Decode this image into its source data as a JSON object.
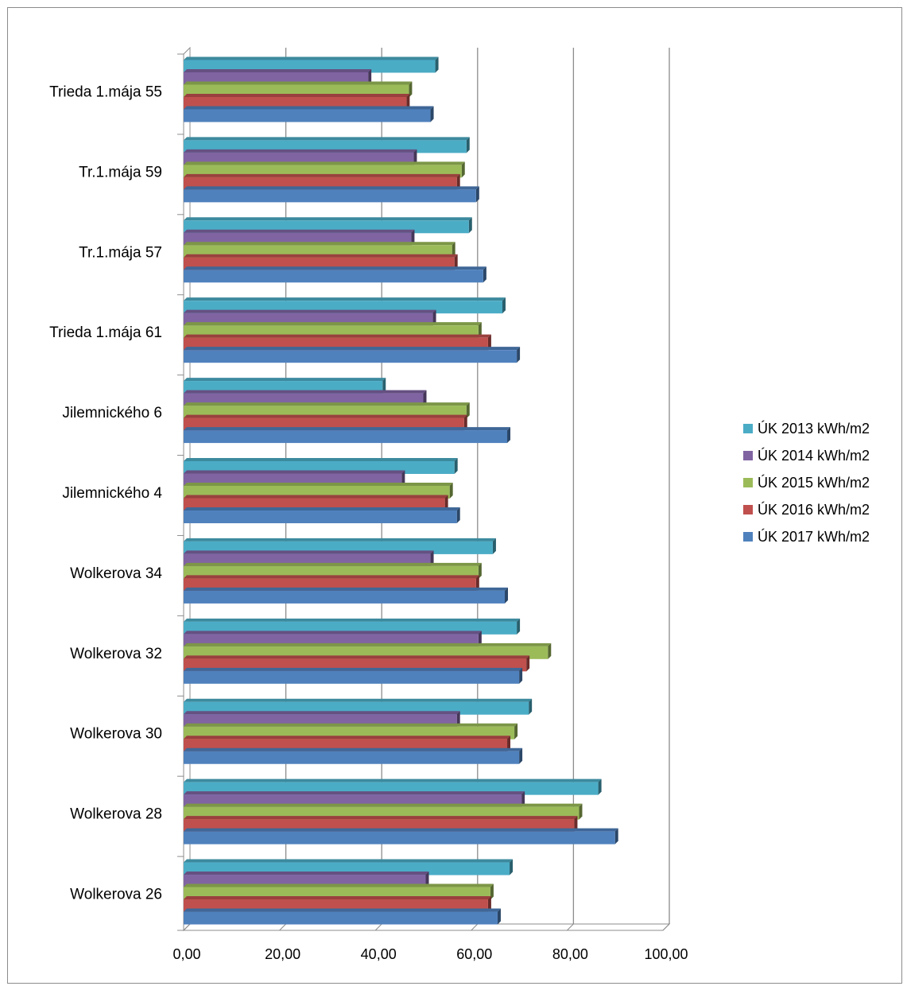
{
  "chart_data": {
    "type": "bar",
    "orientation": "horizontal",
    "three_d": true,
    "categories": [
      "Trieda 1.mája 55",
      "Tr.1.mája 59",
      "Tr.1.mája 57",
      "Trieda 1.mája 61",
      "Jilemnického 6",
      "Jilemnického 4",
      "Wolkerova 34",
      "Wolkerova 32",
      "Wolkerova 30",
      "Wolkerova 28",
      "Wolkerova 26"
    ],
    "series": [
      {
        "name": "ÚK 2013 kWh/m2",
        "color": "#4BACC6",
        "values": [
          52.5,
          59.0,
          59.5,
          66.5,
          41.5,
          56.5,
          64.5,
          69.5,
          72.0,
          86.5,
          68.0
        ]
      },
      {
        "name": "ÚK 2014 kWh/m2",
        "color": "#8064A2",
        "values": [
          38.5,
          48.0,
          47.5,
          52.0,
          50.0,
          45.5,
          51.5,
          61.5,
          57.0,
          70.5,
          50.5
        ]
      },
      {
        "name": "ÚK 2015 kWh/m2",
        "color": "#9BBB59",
        "values": [
          47.0,
          58.0,
          56.0,
          61.5,
          59.0,
          55.5,
          61.5,
          76.0,
          69.0,
          82.5,
          64.0
        ]
      },
      {
        "name": "ÚK 2016 kWh/m2",
        "color": "#C0504D",
        "values": [
          46.5,
          57.0,
          56.5,
          63.5,
          58.5,
          54.5,
          61.0,
          71.5,
          67.5,
          81.5,
          63.5
        ]
      },
      {
        "name": "ÚK 2017 kWh/m2",
        "color": "#4F81BD",
        "values": [
          51.5,
          61.0,
          62.5,
          69.5,
          67.5,
          57.0,
          67.0,
          70.0,
          70.0,
          90.0,
          65.5
        ]
      }
    ],
    "x_ticks": [
      "0,00",
      "20,00",
      "40,00",
      "60,00",
      "80,00",
      "100,00"
    ],
    "xlim": [
      0,
      100
    ],
    "grid": true,
    "legend_position": "right"
  }
}
